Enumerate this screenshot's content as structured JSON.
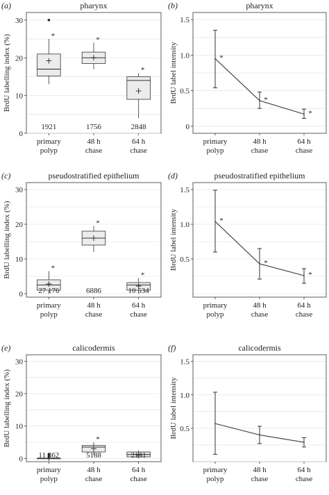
{
  "figure": {
    "x_categories": [
      [
        "primary",
        "polyp"
      ],
      [
        "48 h",
        "chase"
      ],
      [
        "64 h",
        "chase"
      ]
    ],
    "grid_color": "#e6e6e6",
    "box_fill": "#ececec",
    "line_color": "#333333"
  },
  "chart_data": [
    {
      "type": "box",
      "letter": "(a)",
      "title": "pharynx",
      "ylabel": "BrdU labelling index (%)",
      "ylim": [
        0,
        32
      ],
      "yticks": [
        0,
        10,
        20,
        30
      ],
      "grid": true,
      "categories": [
        "primary polyp",
        "48 h chase",
        "64 h chase"
      ],
      "boxes": [
        {
          "q1": 15.2,
          "median": 17.0,
          "q3": 21.0,
          "whisker_low": 13.0,
          "whisker_high": 25.0,
          "mean": 19.2,
          "outliers": [
            30.0
          ],
          "star": true,
          "n": "1921"
        },
        {
          "q1": 18.5,
          "median": 20.0,
          "q3": 21.5,
          "whisker_low": 17.0,
          "whisker_high": 24.0,
          "mean": 20.0,
          "outliers": [],
          "star": true,
          "n": "1756"
        },
        {
          "q1": 9.0,
          "median": 14.0,
          "q3": 15.0,
          "whisker_low": 4.0,
          "whisker_high": 16.0,
          "mean": 11.2,
          "outliers": [],
          "star": true,
          "n": "2848"
        }
      ]
    },
    {
      "type": "line",
      "letter": "(b)",
      "title": "pharynx",
      "ylabel": "BrdU label intensity",
      "ylim": [
        -0.1,
        1.6
      ],
      "yticks": [
        0,
        0.5,
        1.0,
        1.5
      ],
      "yticklabels": [
        "0",
        "0.5",
        "1.0",
        "1.5"
      ],
      "grid": true,
      "categories": [
        "primary polyp",
        "48 h chase",
        "64 h chase"
      ],
      "values": [
        0.95,
        0.36,
        0.17
      ],
      "err_low": [
        0.54,
        0.25,
        0.11
      ],
      "err_high": [
        1.35,
        0.48,
        0.24
      ],
      "stars": [
        true,
        true,
        true
      ]
    },
    {
      "type": "box",
      "letter": "(c)",
      "title": "pseudostratified epithelium",
      "ylabel": "BrdU labelling index (%)",
      "ylim": [
        -1,
        32
      ],
      "yticks": [
        0,
        10,
        20,
        30
      ],
      "grid": true,
      "categories": [
        "primary polyp",
        "48 h chase",
        "64 h chase"
      ],
      "boxes": [
        {
          "q1": 1.0,
          "median": 2.5,
          "q3": 4.0,
          "whisker_low": 0.0,
          "whisker_high": 6.5,
          "mean": 2.8,
          "outliers": [],
          "star": true,
          "n": "27 176"
        },
        {
          "q1": 14.0,
          "median": 16.0,
          "q3": 18.0,
          "whisker_low": 12.0,
          "whisker_high": 19.5,
          "mean": 16.0,
          "outliers": [],
          "star": true,
          "n": "6886"
        },
        {
          "q1": 1.0,
          "median": 2.5,
          "q3": 3.2,
          "whisker_low": 0.0,
          "whisker_high": 4.5,
          "mean": 2.2,
          "outliers": [],
          "star": true,
          "n": "10 534"
        }
      ]
    },
    {
      "type": "line",
      "letter": "(d)",
      "title": "pseudostratified epithelium",
      "ylabel": "BrdU label intensity",
      "ylim": [
        -0.05,
        1.6
      ],
      "yticks": [
        0.5,
        1.0,
        1.5
      ],
      "yticklabels": [
        "0.5",
        "1.0",
        "1.5"
      ],
      "grid": true,
      "categories": [
        "primary polyp",
        "48 h chase",
        "64 h chase"
      ],
      "values": [
        1.04,
        0.43,
        0.26
      ],
      "err_low": [
        0.6,
        0.21,
        0.15
      ],
      "err_high": [
        1.49,
        0.65,
        0.36
      ],
      "stars": [
        true,
        true,
        true
      ]
    },
    {
      "type": "box",
      "letter": "(e)",
      "title": "calicodermis",
      "ylabel": "BrdU labelling index (%)",
      "ylim": [
        -1,
        32
      ],
      "yticks": [
        0,
        10,
        20,
        30
      ],
      "grid": true,
      "categories": [
        "primary polyp",
        "48 h chase",
        "64 h chase"
      ],
      "boxes": [
        {
          "q1": 0.0,
          "median": 0.0,
          "q3": 0.1,
          "whisker_low": 0.0,
          "whisker_high": 0.2,
          "mean": 0.1,
          "outliers": [
            0.6,
            1.2
          ],
          "star": false,
          "n": "11 362"
        },
        {
          "q1": 2.0,
          "median": 3.5,
          "q3": 4.0,
          "whisker_low": 1.0,
          "whisker_high": 5.0,
          "mean": 3.0,
          "outliers": [],
          "star": true,
          "n": "5188"
        },
        {
          "q1": 0.5,
          "median": 1.2,
          "q3": 2.0,
          "whisker_low": 0.2,
          "whisker_high": 2.5,
          "mean": 1.0,
          "outliers": [],
          "star": false,
          "n": "2131"
        }
      ]
    },
    {
      "type": "line",
      "letter": "(f)",
      "title": "calicodermis",
      "ylabel": "BrdU label intensity",
      "ylim": [
        0.0,
        1.6
      ],
      "yticks": [
        0.5,
        1.0,
        1.5
      ],
      "yticklabels": [
        "0.5",
        "1.0",
        "1.5"
      ],
      "grid": true,
      "categories": [
        "primary polyp",
        "48 h chase",
        "64 h chase"
      ],
      "values": [
        0.57,
        0.4,
        0.29
      ],
      "err_low": [
        0.11,
        0.27,
        0.22
      ],
      "err_high": [
        1.04,
        0.53,
        0.36
      ],
      "stars": [
        false,
        false,
        false
      ]
    }
  ]
}
